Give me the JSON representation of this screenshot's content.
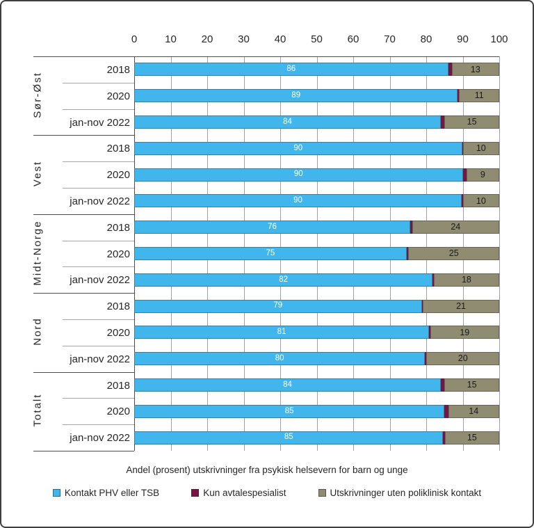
{
  "colors": {
    "kontakt": "#41b6ec",
    "kun": "#7a1248",
    "uten": "#8f8c72",
    "grid": "#a0a0a0",
    "axis": "#4d4d4d"
  },
  "chart_data": {
    "type": "bar",
    "orientation": "horizontal",
    "stacked": true,
    "title": "Andel (prosent)  utskrivninger fra psykisk helsevern for barn og unge",
    "axis": {
      "position": "top",
      "min": 0,
      "max": 100,
      "ticks": [
        0,
        10,
        20,
        30,
        40,
        50,
        60,
        70,
        80,
        90,
        100
      ]
    },
    "legend": [
      {
        "name": "legend-kontakt",
        "label": "Kontakt PHV eller TSB",
        "color": "#41b6ec"
      },
      {
        "name": "legend-kun",
        "label": "Kun avtalespesialist",
        "color": "#7a1248"
      },
      {
        "name": "legend-uten",
        "label": "Utskrivninger uten poliklinisk kontakt",
        "color": "#8f8c72"
      }
    ],
    "series_names": [
      "Kontakt PHV eller TSB",
      "Kun avtalespesialist",
      "Utskrivninger uten poliklinisk kontakt"
    ],
    "groups": [
      {
        "region": "Sør-Øst",
        "rows": [
          {
            "year": "2018",
            "kontakt": 86,
            "kun": 1,
            "uten": 13
          },
          {
            "year": "2020",
            "kontakt": 89,
            "kun": 0.4,
            "uten": 11
          },
          {
            "year": "jan-nov 2022",
            "kontakt": 84,
            "kun": 1,
            "uten": 15
          }
        ]
      },
      {
        "region": "Vest",
        "rows": [
          {
            "year": "2018",
            "kontakt": 90,
            "kun": 0.2,
            "uten": 10
          },
          {
            "year": "2020",
            "kontakt": 90,
            "kun": 1,
            "uten": 9
          },
          {
            "year": "jan-nov 2022",
            "kontakt": 90,
            "kun": 0.3,
            "uten": 10
          }
        ]
      },
      {
        "region": "Midt-Norge",
        "rows": [
          {
            "year": "2018",
            "kontakt": 76,
            "kun": 0.5,
            "uten": 24
          },
          {
            "year": "2020",
            "kontakt": 75,
            "kun": 0.5,
            "uten": 25
          },
          {
            "year": "jan-nov 2022",
            "kontakt": 82,
            "kun": 0.3,
            "uten": 18
          }
        ]
      },
      {
        "region": "Nord",
        "rows": [
          {
            "year": "2018",
            "kontakt": 79,
            "kun": 0.3,
            "uten": 21
          },
          {
            "year": "2020",
            "kontakt": 81,
            "kun": 0.3,
            "uten": 19
          },
          {
            "year": "jan-nov 2022",
            "kontakt": 80,
            "kun": 0.4,
            "uten": 20
          }
        ]
      },
      {
        "region": "Totalt",
        "rows": [
          {
            "year": "2018",
            "kontakt": 84,
            "kun": 1,
            "uten": 15
          },
          {
            "year": "2020",
            "kontakt": 85,
            "kun": 1,
            "uten": 14
          },
          {
            "year": "jan-nov 2022",
            "kontakt": 85,
            "kun": 0.4,
            "uten": 15
          }
        ]
      }
    ]
  }
}
